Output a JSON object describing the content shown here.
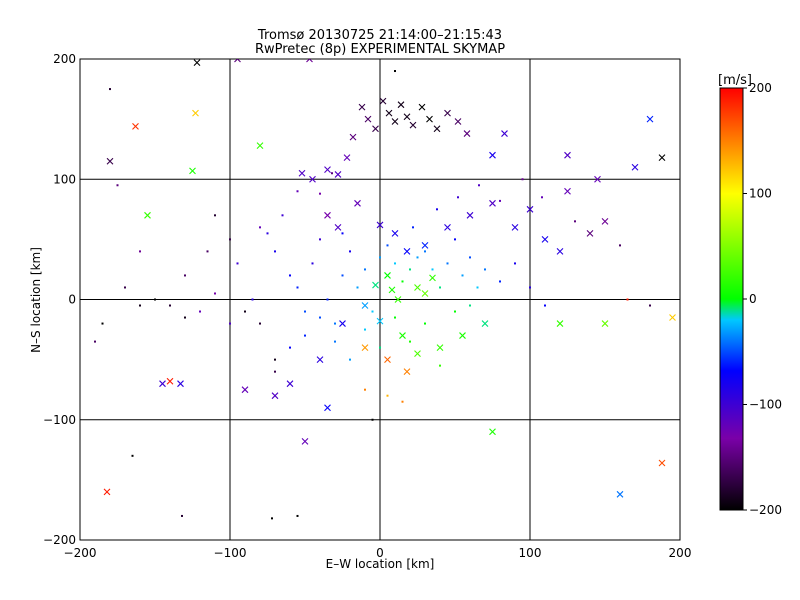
{
  "chart_data": {
    "type": "scatter",
    "title": "Tromsø 20130725 21:14:00–21:15:43",
    "subtitle": "RwPretec (8p) EXPERIMENTAL SKYMAP",
    "xlabel": "E–W location [km]",
    "ylabel": "N–S location [km]",
    "xlim": [
      -200,
      200
    ],
    "ylim": [
      -200,
      200
    ],
    "xticks": [
      -200,
      -100,
      0,
      100,
      200
    ],
    "yticks": [
      -200,
      -100,
      0,
      100,
      200
    ],
    "xtick_labels": [
      "−200",
      "−100",
      "0",
      "100",
      "200"
    ],
    "ytick_labels": [
      "−200",
      "−100",
      "0",
      "100",
      "200"
    ],
    "grid": true,
    "colorbar": {
      "label": "[m/s]",
      "range": [
        -200,
        200
      ],
      "ticks": [
        200,
        100,
        0,
        -100,
        -200
      ],
      "tick_labels": [
        "200",
        "100",
        "0",
        "−100",
        "−200"
      ],
      "colors": [
        "#000000",
        "#7a00a8",
        "#0000ff",
        "#00c8ff",
        "#00ff00",
        "#ffff00",
        "#ff0000"
      ]
    },
    "series": [
      {
        "marker": "x",
        "points": [
          [
            -163,
            144,
            180
          ],
          [
            -123,
            155,
            120
          ],
          [
            -80,
            128,
            20
          ],
          [
            -52,
            105,
            -110
          ],
          [
            -45,
            100,
            -110
          ],
          [
            -35,
            108,
            -110
          ],
          [
            -28,
            104,
            -110
          ],
          [
            -22,
            118,
            -120
          ],
          [
            -18,
            135,
            -150
          ],
          [
            -12,
            160,
            -170
          ],
          [
            -8,
            150,
            -160
          ],
          [
            -3,
            142,
            -170
          ],
          [
            2,
            165,
            -180
          ],
          [
            6,
            155,
            -190
          ],
          [
            10,
            148,
            -190
          ],
          [
            14,
            162,
            -190
          ],
          [
            18,
            152,
            -190
          ],
          [
            22,
            145,
            -180
          ],
          [
            28,
            160,
            -200
          ],
          [
            33,
            150,
            -200
          ],
          [
            38,
            142,
            -190
          ],
          [
            45,
            155,
            -170
          ],
          [
            52,
            148,
            -160
          ],
          [
            58,
            138,
            -150
          ],
          [
            -35,
            70,
            -130
          ],
          [
            -28,
            60,
            -110
          ],
          [
            -15,
            80,
            -120
          ],
          [
            0,
            62,
            -100
          ],
          [
            10,
            55,
            -80
          ],
          [
            18,
            40,
            -70
          ],
          [
            30,
            45,
            -60
          ],
          [
            45,
            60,
            -90
          ],
          [
            60,
            70,
            -100
          ],
          [
            75,
            80,
            -110
          ],
          [
            90,
            60,
            -90
          ],
          [
            100,
            75,
            -100
          ],
          [
            110,
            50,
            -80
          ],
          [
            125,
            90,
            -120
          ],
          [
            140,
            55,
            -150
          ],
          [
            150,
            65,
            -140
          ],
          [
            170,
            110,
            -90
          ],
          [
            188,
            118,
            -200
          ],
          [
            145,
            100,
            -120
          ],
          [
            120,
            40,
            -90
          ],
          [
            5,
            20,
            0
          ],
          [
            8,
            8,
            10
          ],
          [
            12,
            0,
            20
          ],
          [
            -3,
            12,
            -10
          ],
          [
            25,
            10,
            30
          ],
          [
            30,
            5,
            40
          ],
          [
            35,
            18,
            20
          ],
          [
            -10,
            -5,
            -30
          ],
          [
            0,
            -18,
            -20
          ],
          [
            15,
            -30,
            10
          ],
          [
            25,
            -45,
            30
          ],
          [
            40,
            -40,
            20
          ],
          [
            55,
            -30,
            10
          ],
          [
            70,
            -20,
            -10
          ],
          [
            -25,
            -20,
            -80
          ],
          [
            -40,
            -50,
            -90
          ],
          [
            -60,
            -70,
            -100
          ],
          [
            -70,
            -80,
            -110
          ],
          [
            -90,
            -75,
            -120
          ],
          [
            -140,
            -68,
            190
          ],
          [
            -145,
            -70,
            -100
          ],
          [
            -133,
            -70,
            -90
          ],
          [
            -50,
            -118,
            -120
          ],
          [
            -35,
            -90,
            -70
          ],
          [
            5,
            -50,
            160
          ],
          [
            18,
            -60,
            150
          ],
          [
            -10,
            -40,
            140
          ],
          [
            75,
            -110,
            10
          ],
          [
            120,
            -20,
            20
          ],
          [
            150,
            -20,
            40
          ],
          [
            160,
            -162,
            -40
          ],
          [
            188,
            -136,
            170
          ],
          [
            -182,
            -160,
            190
          ],
          [
            195,
            -15,
            120
          ],
          [
            -155,
            70,
            20
          ],
          [
            -125,
            107,
            10
          ],
          [
            -47,
            200,
            -140
          ],
          [
            -95,
            200,
            -150
          ],
          [
            -122,
            197,
            -200
          ],
          [
            -180,
            115,
            -170
          ],
          [
            83,
            138,
            -100
          ],
          [
            75,
            120,
            -80
          ],
          [
            180,
            150,
            -60
          ],
          [
            125,
            120,
            -110
          ]
        ]
      },
      {
        "marker": "dot",
        "points": [
          [
            -180,
            175,
            -180
          ],
          [
            -175,
            95,
            -150
          ],
          [
            -160,
            40,
            -140
          ],
          [
            -170,
            10,
            -170
          ],
          [
            -150,
            0,
            -200
          ],
          [
            -140,
            -5,
            -180
          ],
          [
            -130,
            20,
            -160
          ],
          [
            -120,
            -10,
            -120
          ],
          [
            -110,
            5,
            -130
          ],
          [
            -100,
            -20,
            -110
          ],
          [
            -95,
            30,
            -100
          ],
          [
            -85,
            0,
            -90
          ],
          [
            -80,
            60,
            -120
          ],
          [
            -70,
            40,
            -80
          ],
          [
            -60,
            20,
            -70
          ],
          [
            -55,
            10,
            -60
          ],
          [
            -50,
            -10,
            -50
          ],
          [
            -45,
            30,
            -90
          ],
          [
            -40,
            50,
            -100
          ],
          [
            -35,
            0,
            -60
          ],
          [
            -30,
            -20,
            -40
          ],
          [
            -25,
            20,
            -50
          ],
          [
            -20,
            40,
            -80
          ],
          [
            -15,
            10,
            -30
          ],
          [
            -10,
            25,
            -40
          ],
          [
            -5,
            -10,
            -20
          ],
          [
            0,
            35,
            -30
          ],
          [
            5,
            45,
            -50
          ],
          [
            10,
            30,
            -20
          ],
          [
            15,
            15,
            0
          ],
          [
            20,
            25,
            -10
          ],
          [
            25,
            35,
            -30
          ],
          [
            30,
            40,
            -40
          ],
          [
            35,
            25,
            -20
          ],
          [
            40,
            10,
            -10
          ],
          [
            45,
            30,
            -40
          ],
          [
            50,
            50,
            -70
          ],
          [
            55,
            20,
            -30
          ],
          [
            60,
            35,
            -50
          ],
          [
            65,
            10,
            -20
          ],
          [
            70,
            25,
            -40
          ],
          [
            80,
            15,
            -60
          ],
          [
            90,
            30,
            -80
          ],
          [
            100,
            10,
            -90
          ],
          [
            110,
            -5,
            -70
          ],
          [
            -60,
            -40,
            -70
          ],
          [
            -50,
            -30,
            -60
          ],
          [
            -40,
            -15,
            -50
          ],
          [
            -30,
            -35,
            -40
          ],
          [
            -20,
            -50,
            -30
          ],
          [
            -10,
            -25,
            -20
          ],
          [
            0,
            -40,
            -10
          ],
          [
            10,
            -15,
            0
          ],
          [
            20,
            -35,
            10
          ],
          [
            30,
            -20,
            0
          ],
          [
            40,
            -55,
            20
          ],
          [
            50,
            -10,
            0
          ],
          [
            60,
            -5,
            -10
          ],
          [
            -70,
            -60,
            -170
          ],
          [
            -80,
            -20,
            -180
          ],
          [
            -90,
            -10,
            -190
          ],
          [
            -100,
            50,
            -170
          ],
          [
            -110,
            70,
            -180
          ],
          [
            -115,
            40,
            -160
          ],
          [
            -130,
            -15,
            -190
          ],
          [
            -160,
            -5,
            -190
          ],
          [
            -185,
            -20,
            -200
          ],
          [
            -190,
            -35,
            -160
          ],
          [
            -165,
            -130,
            -200
          ],
          [
            -70,
            -50,
            -190
          ],
          [
            -10,
            -75,
            150
          ],
          [
            5,
            -80,
            130
          ],
          [
            15,
            -85,
            150
          ],
          [
            -55,
            -180,
            -200
          ],
          [
            -132,
            -180,
            -180
          ],
          [
            -72,
            -182,
            -200
          ],
          [
            -5,
            -100,
            -200
          ],
          [
            180,
            -5,
            -170
          ],
          [
            165,
            0,
            190
          ],
          [
            10,
            190,
            -200
          ],
          [
            -32,
            105,
            -150
          ],
          [
            -40,
            88,
            -130
          ],
          [
            -55,
            90,
            -120
          ],
          [
            -65,
            70,
            -100
          ],
          [
            -75,
            55,
            -90
          ],
          [
            -25,
            55,
            -70
          ],
          [
            22,
            60,
            -60
          ],
          [
            38,
            75,
            -80
          ],
          [
            52,
            85,
            -100
          ],
          [
            66,
            95,
            -110
          ],
          [
            80,
            82,
            -120
          ],
          [
            95,
            100,
            -140
          ],
          [
            108,
            85,
            -120
          ],
          [
            130,
            65,
            -150
          ],
          [
            160,
            45,
            -160
          ]
        ]
      }
    ]
  }
}
